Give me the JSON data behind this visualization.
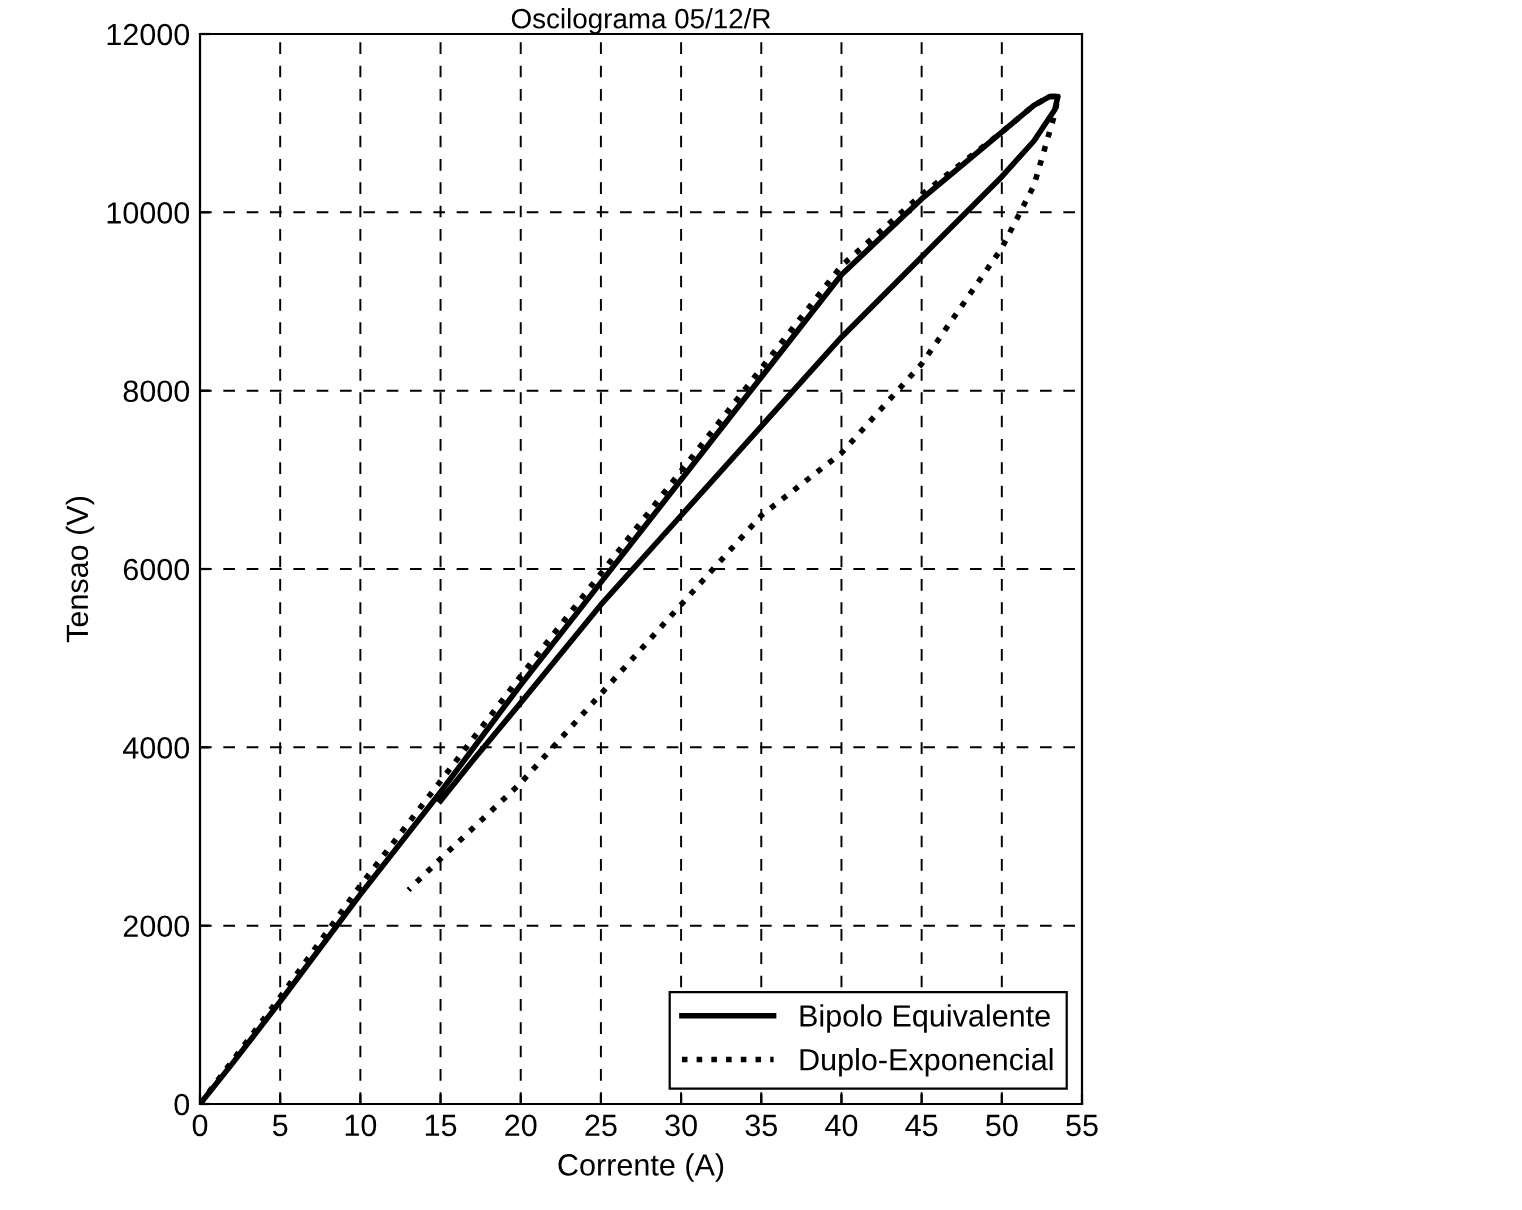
{
  "chart_data": {
    "type": "line",
    "title": "Oscilograma 05/12/R",
    "xlabel": "Corrente (A)",
    "ylabel": "Tensao (V)",
    "xlim": [
      0,
      55
    ],
    "xticks": [
      0,
      5,
      10,
      15,
      20,
      25,
      30,
      35,
      40,
      45,
      50,
      55
    ],
    "ylim": [
      0,
      12000
    ],
    "yticks": [
      0,
      2000,
      4000,
      6000,
      8000,
      10000,
      12000
    ],
    "grid": true,
    "legend": "bottom right",
    "series": [
      {
        "name": "Bipolo Equivalente",
        "color": "#000000",
        "line_style": "solid",
        "x": [
          0,
          2,
          5,
          10,
          15,
          20,
          25,
          30,
          35,
          40,
          45,
          50,
          52,
          53,
          53.5,
          53.3,
          52,
          50,
          45,
          40,
          35,
          30,
          25,
          20,
          17,
          15
        ],
        "values": [
          0,
          450,
          1150,
          2350,
          3500,
          4700,
          5850,
          7000,
          8150,
          9300,
          10150,
          10900,
          11200,
          11300,
          11300,
          11150,
          10800,
          10400,
          9500,
          8600,
          7600,
          6600,
          5600,
          4500,
          3850,
          3400
        ]
      },
      {
        "name": "Duplo-Exponencial",
        "color": "#000000",
        "line_style": "dotted",
        "x": [
          0,
          2,
          5,
          10,
          15,
          20,
          25,
          30,
          35,
          40,
          45,
          50,
          52,
          53,
          53.5,
          53.3,
          52,
          50,
          45,
          40,
          35,
          30,
          25,
          20,
          15,
          13
        ],
        "values": [
          0,
          480,
          1200,
          2450,
          3620,
          4800,
          5950,
          7100,
          8250,
          9400,
          10200,
          10900,
          11200,
          11300,
          11300,
          11100,
          10300,
          9600,
          8300,
          7300,
          6600,
          5600,
          4600,
          3600,
          2750,
          2400
        ]
      }
    ]
  }
}
